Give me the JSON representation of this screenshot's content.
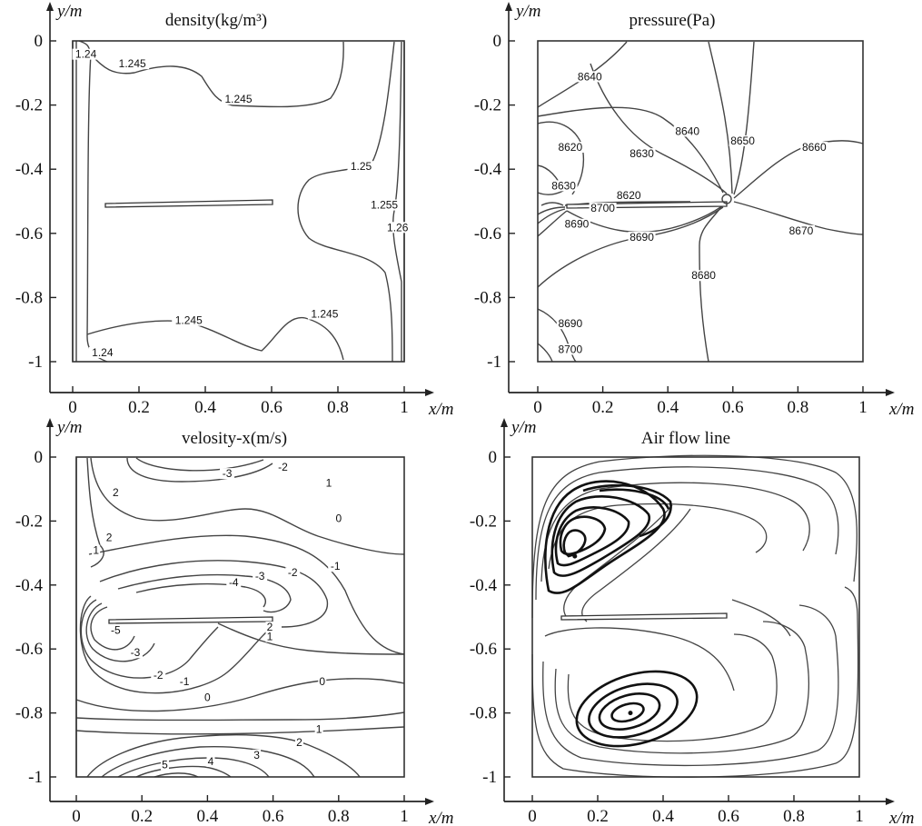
{
  "chart_data": [
    {
      "type": "contour",
      "title": "density(kg/m³)",
      "xlabel": "x/m",
      "ylabel": "y/m",
      "xlim": [
        0,
        1
      ],
      "ylim": [
        -1,
        0
      ],
      "xticks": [
        "0",
        "0.2",
        "0.4",
        "0.6",
        "0.8",
        "1"
      ],
      "yticks": [
        "0",
        "-0.2",
        "-0.4",
        "-0.6",
        "-0.8",
        "-1"
      ],
      "plate": {
        "x0": 0.1,
        "x1": 0.6,
        "y": -0.5
      },
      "contour_labels": [
        {
          "text": "1.24",
          "x": 0.04,
          "y": -0.05
        },
        {
          "text": "1.245",
          "x": 0.18,
          "y": -0.08
        },
        {
          "text": "1.245",
          "x": 0.5,
          "y": -0.19
        },
        {
          "text": "1.25",
          "x": 0.87,
          "y": -0.4
        },
        {
          "text": "1.255",
          "x": 0.94,
          "y": -0.52
        },
        {
          "text": "1.26",
          "x": 0.98,
          "y": -0.59
        },
        {
          "text": "1.245",
          "x": 0.35,
          "y": -0.88
        },
        {
          "text": "1.245",
          "x": 0.76,
          "y": -0.86
        },
        {
          "text": "1.24",
          "x": 0.09,
          "y": -0.98
        }
      ]
    },
    {
      "type": "contour",
      "title": "pressure(Pa)",
      "xlabel": "x/m",
      "ylabel": "y/m",
      "xlim": [
        0,
        1
      ],
      "ylim": [
        -1,
        0
      ],
      "xticks": [
        "0",
        "0.2",
        "0.4",
        "0.6",
        "0.8",
        "1"
      ],
      "yticks": [
        "0",
        "-0.2",
        "-0.4",
        "-0.6",
        "-0.8",
        "-1"
      ],
      "plate": {
        "x0": 0.1,
        "x1": 0.6,
        "y": -0.5
      },
      "contour_labels": [
        {
          "text": "8640",
          "x": 0.16,
          "y": -0.12
        },
        {
          "text": "8640",
          "x": 0.46,
          "y": -0.29
        },
        {
          "text": "8650",
          "x": 0.63,
          "y": -0.32
        },
        {
          "text": "8660",
          "x": 0.85,
          "y": -0.34
        },
        {
          "text": "8620",
          "x": 0.1,
          "y": -0.34
        },
        {
          "text": "8630",
          "x": 0.32,
          "y": -0.36
        },
        {
          "text": "8630",
          "x": 0.08,
          "y": -0.46
        },
        {
          "text": "8620",
          "x": 0.28,
          "y": -0.49
        },
        {
          "text": "8700",
          "x": 0.2,
          "y": -0.53
        },
        {
          "text": "8690",
          "x": 0.12,
          "y": -0.58
        },
        {
          "text": "8690",
          "x": 0.32,
          "y": -0.62
        },
        {
          "text": "8670",
          "x": 0.81,
          "y": -0.6
        },
        {
          "text": "8680",
          "x": 0.51,
          "y": -0.74
        },
        {
          "text": "8690",
          "x": 0.1,
          "y": -0.89
        },
        {
          "text": "8700",
          "x": 0.1,
          "y": -0.97
        }
      ]
    },
    {
      "type": "contour",
      "title": "velosity-x(m/s)",
      "xlabel": "x/m",
      "ylabel": "y/m",
      "xlim": [
        0,
        1
      ],
      "ylim": [
        -1,
        0
      ],
      "xticks": [
        "0",
        "0.2",
        "0.4",
        "0.6",
        "0.8",
        "1"
      ],
      "yticks": [
        "0",
        "-0.2",
        "-0.4",
        "-0.6",
        "-0.8",
        "-1"
      ],
      "plate": {
        "x0": 0.1,
        "x1": 0.6,
        "y": -0.5
      },
      "contour_labels": [
        {
          "text": "-3",
          "x": 0.46,
          "y": -0.06
        },
        {
          "text": "-2",
          "x": 0.63,
          "y": -0.04
        },
        {
          "text": "1",
          "x": 0.77,
          "y": -0.09
        },
        {
          "text": "2",
          "x": 0.12,
          "y": -0.12
        },
        {
          "text": "0",
          "x": 0.8,
          "y": -0.2
        },
        {
          "text": "2",
          "x": 0.1,
          "y": -0.26
        },
        {
          "text": "1",
          "x": 0.06,
          "y": -0.3
        },
        {
          "text": "-4",
          "x": 0.48,
          "y": -0.4
        },
        {
          "text": "-3",
          "x": 0.56,
          "y": -0.38
        },
        {
          "text": "-2",
          "x": 0.66,
          "y": -0.37
        },
        {
          "text": "-1",
          "x": 0.79,
          "y": -0.35
        },
        {
          "text": "-5",
          "x": 0.12,
          "y": -0.55
        },
        {
          "text": "2",
          "x": 0.59,
          "y": -0.54
        },
        {
          "text": "-3",
          "x": 0.18,
          "y": -0.62
        },
        {
          "text": "1",
          "x": 0.59,
          "y": -0.57
        },
        {
          "text": "-2",
          "x": 0.25,
          "y": -0.69
        },
        {
          "text": "-1",
          "x": 0.33,
          "y": -0.71
        },
        {
          "text": "0",
          "x": 0.75,
          "y": -0.71
        },
        {
          "text": "0",
          "x": 0.4,
          "y": -0.76
        },
        {
          "text": "1",
          "x": 0.74,
          "y": -0.86
        },
        {
          "text": "2",
          "x": 0.68,
          "y": -0.9
        },
        {
          "text": "3",
          "x": 0.55,
          "y": -0.94
        },
        {
          "text": "4",
          "x": 0.41,
          "y": -0.96
        },
        {
          "text": "5",
          "x": 0.27,
          "y": -0.97
        }
      ]
    },
    {
      "type": "streamline",
      "title": "Air flow line",
      "xlabel": "x/m",
      "ylabel": "y/m",
      "xlim": [
        0,
        1
      ],
      "ylim": [
        -1,
        0
      ],
      "xticks": [
        "0",
        "0.2",
        "0.4",
        "0.6",
        "0.8",
        "1"
      ],
      "yticks": [
        "0",
        "-0.2",
        "-0.4",
        "-0.6",
        "-0.8",
        "-1"
      ],
      "plate": {
        "x0": 0.1,
        "x1": 0.6,
        "y": -0.5
      },
      "vortex_centers": [
        {
          "x": 0.13,
          "y": -0.31
        },
        {
          "x": 0.3,
          "y": -0.8
        }
      ]
    }
  ]
}
